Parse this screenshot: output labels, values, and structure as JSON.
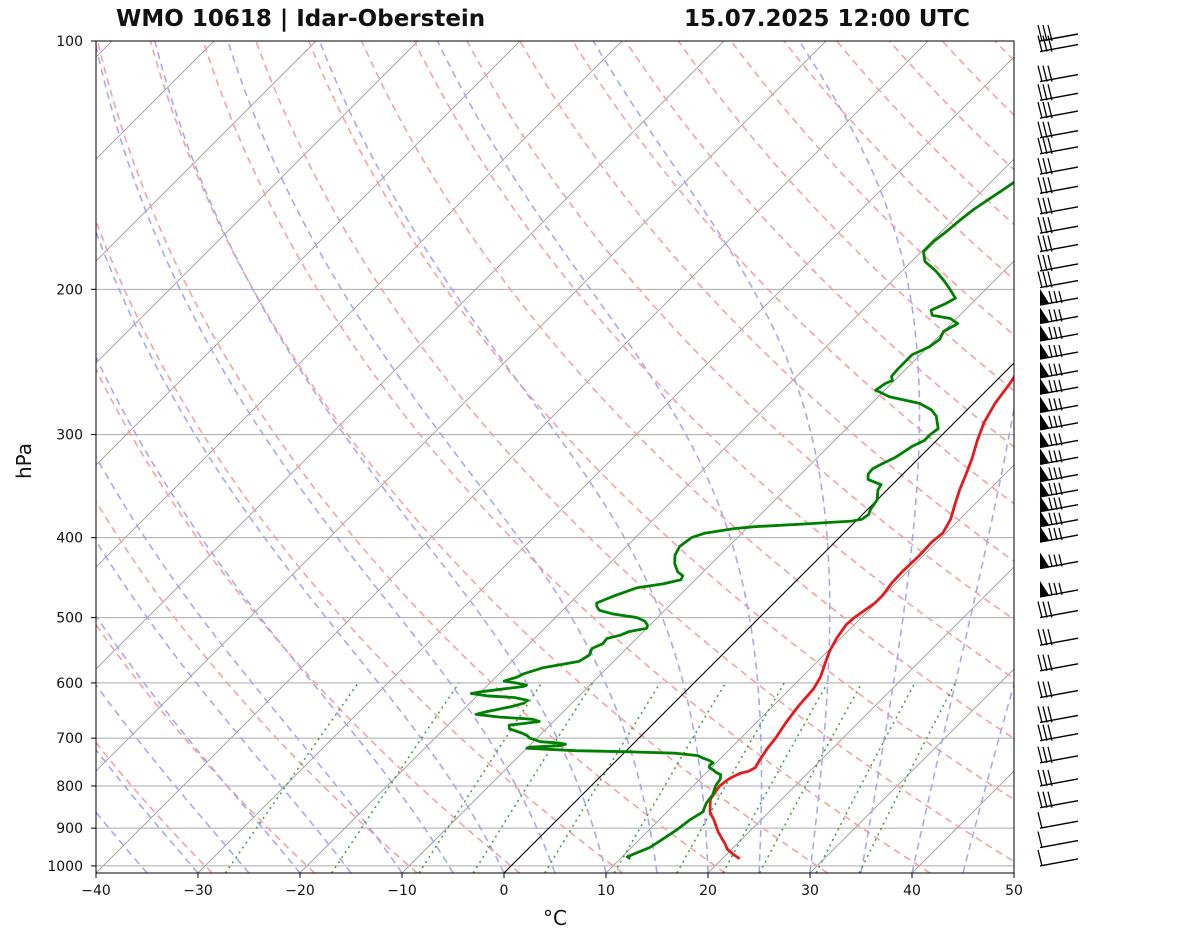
{
  "chart_data": {
    "type": "line",
    "title_left": "WMO 10618 | Idar-Oberstein",
    "title_right": "15.07.2025 12:00 UTC",
    "xlabel": "°C",
    "ylabel": "hPa",
    "xlim": [
      -40,
      50
    ],
    "ylim": [
      1020,
      100
    ],
    "y_scale": "log",
    "x_ticks": [
      -40,
      -30,
      -20,
      -10,
      0,
      10,
      20,
      30,
      40,
      50
    ],
    "y_ticks": [
      100,
      200,
      300,
      400,
      500,
      600,
      700,
      800,
      900,
      1000
    ],
    "grid": true,
    "series": [
      {
        "color": "#e41a1c",
        "points": [
          [
            980,
            21.7
          ],
          [
            970,
            20.8
          ],
          [
            955,
            19.6
          ],
          [
            940,
            18.8
          ],
          [
            925,
            17.9
          ],
          [
            910,
            17.0
          ],
          [
            895,
            16.2
          ],
          [
            880,
            15.4
          ],
          [
            870,
            14.8
          ],
          [
            860,
            14.2
          ],
          [
            850,
            13.8
          ],
          [
            840,
            13.4
          ],
          [
            830,
            13.0
          ],
          [
            815,
            12.8
          ],
          [
            800,
            12.6
          ],
          [
            785,
            12.8
          ],
          [
            780,
            13.0
          ],
          [
            772,
            13.4
          ],
          [
            768,
            14.0
          ],
          [
            760,
            14.3
          ],
          [
            745,
            14.0
          ],
          [
            720,
            13.6
          ],
          [
            700,
            13.4
          ],
          [
            670,
            12.9
          ],
          [
            640,
            12.5
          ],
          [
            610,
            12.3
          ],
          [
            590,
            11.8
          ],
          [
            570,
            11.0
          ],
          [
            550,
            10.2
          ],
          [
            530,
            9.6
          ],
          [
            510,
            9.2
          ],
          [
            500,
            9.3
          ],
          [
            490,
            9.6
          ],
          [
            480,
            9.9
          ],
          [
            470,
            9.9
          ],
          [
            455,
            9.6
          ],
          [
            440,
            9.5
          ],
          [
            420,
            9.6
          ],
          [
            405,
            9.5
          ],
          [
            395,
            9.7
          ],
          [
            380,
            9.1
          ],
          [
            365,
            8.1
          ],
          [
            350,
            7.1
          ],
          [
            335,
            6.2
          ],
          [
            320,
            5.2
          ],
          [
            305,
            4.0
          ],
          [
            290,
            2.9
          ],
          [
            275,
            2.1
          ],
          [
            260,
            1.6
          ],
          [
            250,
            1.1
          ],
          [
            240,
            0.9
          ],
          [
            230,
            0.9
          ],
          [
            225,
            0.6
          ],
          [
            220,
            0.6
          ],
          [
            217,
            1.3
          ],
          [
            215,
            2.7
          ],
          [
            212,
            3.2
          ],
          [
            208,
            3.8
          ],
          [
            200,
            4.5
          ],
          [
            192,
            5.1
          ],
          [
            185,
            6.2
          ],
          [
            178,
            7.4
          ],
          [
            172,
            8.4
          ],
          [
            165,
            9.3
          ],
          [
            155,
            10.4
          ],
          [
            145,
            11.8
          ],
          [
            140,
            12.9
          ],
          [
            135,
            14.3
          ],
          [
            132,
            15.5
          ],
          [
            128,
            17.0
          ],
          [
            124,
            18.5
          ],
          [
            118,
            19.8
          ],
          [
            113,
            20.6
          ],
          [
            108,
            21.7
          ],
          [
            103,
            22.6
          ],
          [
            100,
            23.2
          ]
        ]
      },
      {
        "color": "#008000",
        "points": [
          [
            980,
            11.0
          ],
          [
            975,
            10.5
          ],
          [
            965,
            11.0
          ],
          [
            950,
            11.8
          ],
          [
            930,
            12.2
          ],
          [
            905,
            12.7
          ],
          [
            880,
            13.0
          ],
          [
            860,
            13.5
          ],
          [
            840,
            13.0
          ],
          [
            820,
            12.8
          ],
          [
            800,
            12.2
          ],
          [
            785,
            12.0
          ],
          [
            775,
            11.6
          ],
          [
            770,
            10.9
          ],
          [
            765,
            10.4
          ],
          [
            760,
            9.8
          ],
          [
            755,
            9.6
          ],
          [
            750,
            9.7
          ],
          [
            745,
            9.1
          ],
          [
            740,
            8.2
          ],
          [
            735,
            7.5
          ],
          [
            730,
            5.0
          ],
          [
            727,
            0.0
          ],
          [
            725,
            -5.0
          ],
          [
            722,
            -8.0
          ],
          [
            720,
            -10.0
          ],
          [
            718,
            -9.8
          ],
          [
            715,
            -7.0
          ],
          [
            712,
            -6.6
          ],
          [
            710,
            -7.2
          ],
          [
            707,
            -9.3
          ],
          [
            700,
            -10.7
          ],
          [
            695,
            -11.2
          ],
          [
            690,
            -12.0
          ],
          [
            682,
            -13.6
          ],
          [
            675,
            -14.0
          ],
          [
            672,
            -12.7
          ],
          [
            668,
            -11.4
          ],
          [
            664,
            -12.3
          ],
          [
            660,
            -15.8
          ],
          [
            655,
            -18.3
          ],
          [
            650,
            -17.5
          ],
          [
            645,
            -16.4
          ],
          [
            640,
            -15.4
          ],
          [
            635,
            -14.7
          ],
          [
            630,
            -14.6
          ],
          [
            625,
            -16.2
          ],
          [
            622,
            -19.1
          ],
          [
            618,
            -20.8
          ],
          [
            615,
            -20.0
          ],
          [
            610,
            -18.0
          ],
          [
            606,
            -16.4
          ],
          [
            604,
            -16.2
          ],
          [
            601,
            -17.1
          ],
          [
            597,
            -18.8
          ],
          [
            590,
            -17.9
          ],
          [
            585,
            -17.6
          ],
          [
            575,
            -16.3
          ],
          [
            565,
            -13.4
          ],
          [
            555,
            -13.0
          ],
          [
            545,
            -13.4
          ],
          [
            538,
            -12.8
          ],
          [
            530,
            -12.9
          ],
          [
            525,
            -11.9
          ],
          [
            520,
            -11.4
          ],
          [
            515,
            -10.0
          ],
          [
            510,
            -10.3
          ],
          [
            505,
            -10.9
          ],
          [
            500,
            -12.0
          ],
          [
            495,
            -14.7
          ],
          [
            490,
            -16.4
          ],
          [
            485,
            -17.0
          ],
          [
            480,
            -17.4
          ],
          [
            470,
            -16.3
          ],
          [
            460,
            -14.9
          ],
          [
            455,
            -12.7
          ],
          [
            450,
            -11.4
          ],
          [
            445,
            -11.6
          ],
          [
            440,
            -12.5
          ],
          [
            430,
            -13.6
          ],
          [
            420,
            -14.4
          ],
          [
            410,
            -14.8
          ],
          [
            400,
            -14.5
          ],
          [
            395,
            -13.6
          ],
          [
            390,
            -11.2
          ],
          [
            388,
            -9.4
          ],
          [
            385,
            -4.6
          ],
          [
            383,
            -2.0
          ],
          [
            382,
            -0.4
          ],
          [
            380,
            0.4
          ],
          [
            375,
            0.6
          ],
          [
            370,
            0.3
          ],
          [
            360,
            0.0
          ],
          [
            350,
            -0.9
          ],
          [
            345,
            -1.1
          ],
          [
            340,
            -2.9
          ],
          [
            335,
            -3.4
          ],
          [
            330,
            -3.5
          ],
          [
            325,
            -3.0
          ],
          [
            320,
            -2.4
          ],
          [
            315,
            -2.1
          ],
          [
            310,
            -1.8
          ],
          [
            305,
            -1.2
          ],
          [
            300,
            -1.2
          ],
          [
            295,
            -1.0
          ],
          [
            290,
            -1.7
          ],
          [
            285,
            -2.4
          ],
          [
            280,
            -3.5
          ],
          [
            275,
            -5.3
          ],
          [
            270,
            -8.9
          ],
          [
            265,
            -10.9
          ],
          [
            260,
            -10.6
          ],
          [
            258,
            -10.2
          ],
          [
            255,
            -10.7
          ],
          [
            250,
            -10.8
          ],
          [
            240,
            -10.8
          ],
          [
            235,
            -9.9
          ],
          [
            230,
            -9.6
          ],
          [
            225,
            -10.0
          ],
          [
            220,
            -9.4
          ],
          [
            217,
            -10.6
          ],
          [
            215,
            -12.7
          ],
          [
            212,
            -13.3
          ],
          [
            208,
            -12.5
          ],
          [
            205,
            -12.1
          ],
          [
            200,
            -13.5
          ],
          [
            195,
            -15.0
          ],
          [
            190,
            -16.7
          ],
          [
            185,
            -18.7
          ],
          [
            180,
            -19.8
          ],
          [
            175,
            -19.8
          ],
          [
            170,
            -19.5
          ],
          [
            165,
            -19.3
          ],
          [
            160,
            -19.0
          ],
          [
            150,
            -17.9
          ],
          [
            140,
            -16.8
          ],
          [
            130,
            -15.5
          ],
          [
            125,
            -14.4
          ],
          [
            120,
            -13.0
          ],
          [
            115,
            -11.7
          ],
          [
            110,
            -10.3
          ],
          [
            105,
            -8.8
          ],
          [
            100,
            -7.8
          ]
        ]
      }
    ],
    "wind_barbs_pressure": [
      100,
      103,
      112,
      118,
      124,
      131,
      137,
      145,
      153,
      162,
      171,
      180,
      190,
      199,
      209,
      220,
      231,
      243,
      256,
      268,
      282,
      296,
      311,
      326,
      342,
      357,
      372,
      388,
      405,
      436,
      472,
      500,
      540,
      580,
      625,
      670,
      705,
      750,
      800,
      850,
      900,
      950,
      1000
    ]
  }
}
